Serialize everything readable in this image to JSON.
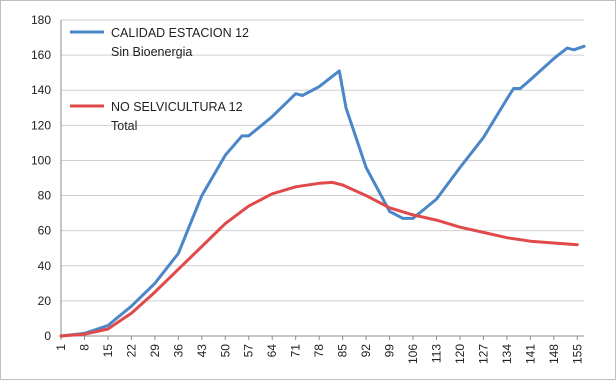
{
  "chart_data": {
    "type": "line",
    "title": "",
    "xlabel": "",
    "ylabel": "",
    "ylim": [
      0,
      180
    ],
    "yticks": [
      0,
      20,
      40,
      60,
      80,
      100,
      120,
      140,
      160,
      180
    ],
    "x_tick_labels": [
      "1",
      "8",
      "15",
      "22",
      "29",
      "36",
      "43",
      "50",
      "57",
      "64",
      "71",
      "78",
      "85",
      "92",
      "99",
      "106",
      "113",
      "120",
      "127",
      "134",
      "141",
      "148",
      "155"
    ],
    "xlim": [
      1,
      157
    ],
    "grid": "horizontal",
    "legend_position": "top-left",
    "series": [
      {
        "name": "CALIDAD ESTACION 12",
        "subtitle": "Sin Bioenergia",
        "color": "#4a86c8",
        "points": [
          [
            1,
            0
          ],
          [
            8,
            1.5
          ],
          [
            15,
            6
          ],
          [
            22,
            17
          ],
          [
            29,
            30
          ],
          [
            36,
            47
          ],
          [
            43,
            80
          ],
          [
            50,
            103
          ],
          [
            55,
            114
          ],
          [
            57,
            114
          ],
          [
            64,
            125
          ],
          [
            71,
            138
          ],
          [
            73,
            137
          ],
          [
            78,
            142
          ],
          [
            84,
            151
          ],
          [
            86,
            130
          ],
          [
            92,
            96
          ],
          [
            99,
            71
          ],
          [
            103,
            67
          ],
          [
            106,
            67
          ],
          [
            113,
            78
          ],
          [
            120,
            96
          ],
          [
            127,
            113
          ],
          [
            134,
            135
          ],
          [
            136,
            141
          ],
          [
            138,
            141
          ],
          [
            141,
            146
          ],
          [
            148,
            158
          ],
          [
            152,
            164
          ],
          [
            154,
            163
          ],
          [
            157,
            165
          ]
        ]
      },
      {
        "name": "NO SELVICULTURA 12",
        "subtitle": "Total",
        "color": "#e04a4a",
        "points": [
          [
            1,
            0
          ],
          [
            8,
            1
          ],
          [
            15,
            4
          ],
          [
            22,
            13
          ],
          [
            29,
            25
          ],
          [
            36,
            38
          ],
          [
            43,
            51
          ],
          [
            50,
            64
          ],
          [
            57,
            74
          ],
          [
            64,
            81
          ],
          [
            71,
            85
          ],
          [
            78,
            87
          ],
          [
            82,
            87.5
          ],
          [
            85,
            86
          ],
          [
            92,
            80
          ],
          [
            99,
            73
          ],
          [
            106,
            69
          ],
          [
            113,
            66
          ],
          [
            120,
            62
          ],
          [
            127,
            59
          ],
          [
            134,
            56
          ],
          [
            141,
            54
          ],
          [
            148,
            53
          ],
          [
            155,
            52
          ]
        ]
      }
    ]
  }
}
